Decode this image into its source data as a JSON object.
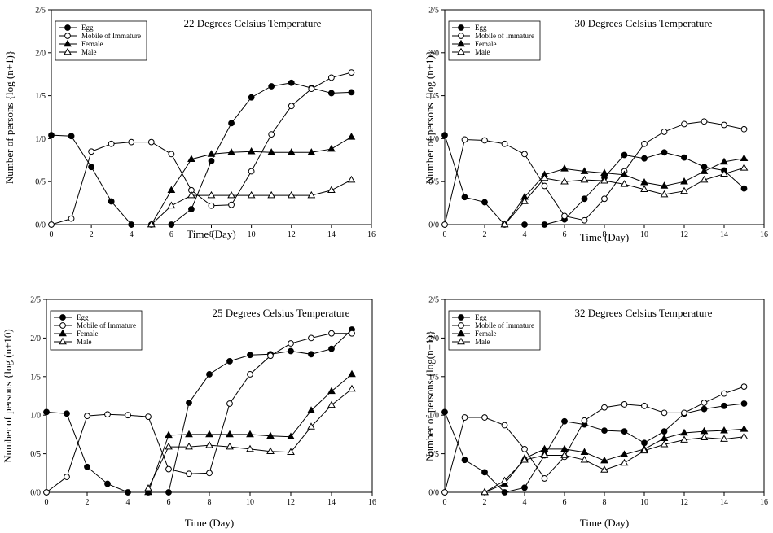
{
  "chart_data": [
    {
      "type": "line",
      "title": "22 Degrees Celsius Temperature",
      "xlabel": "Time (Day)",
      "ylabel": "Number of persons {log (n+1)}",
      "xlim": [
        0,
        16
      ],
      "ylim": [
        0,
        2.5
      ],
      "xticks": [
        "0",
        "2",
        "4",
        "6",
        "8",
        "10",
        "12",
        "14",
        "16"
      ],
      "yticks": [
        "0/0",
        "0/5",
        "1/0",
        "1/5",
        "2/0",
        "2/5"
      ],
      "grid": false,
      "legend_position": "top-left",
      "series": [
        {
          "name": "Egg",
          "marker": "filled-circle",
          "x": [
            0,
            1,
            2,
            3,
            4,
            5,
            6,
            7,
            8,
            9,
            10,
            11,
            12,
            13,
            14,
            15
          ],
          "y": [
            1.04,
            1.03,
            0.67,
            0.27,
            0.0,
            0.0,
            0.0,
            0.18,
            0.74,
            1.18,
            1.48,
            1.61,
            1.65,
            1.59,
            1.53,
            1.54
          ]
        },
        {
          "name": "Mobile of Immature",
          "marker": "open-circle",
          "x": [
            0,
            1,
            2,
            3,
            4,
            5,
            6,
            7,
            8,
            9,
            10,
            11,
            12,
            13,
            14,
            15
          ],
          "y": [
            0.0,
            0.07,
            0.85,
            0.94,
            0.96,
            0.96,
            0.82,
            0.4,
            0.22,
            0.23,
            0.62,
            1.05,
            1.38,
            1.58,
            1.71,
            1.77
          ]
        },
        {
          "name": "Female",
          "marker": "filled-triangle",
          "x": [
            5,
            6,
            7,
            8,
            9,
            10,
            11,
            12,
            13,
            14,
            15
          ],
          "y": [
            0.0,
            0.4,
            0.76,
            0.82,
            0.84,
            0.85,
            0.84,
            0.84,
            0.84,
            0.88,
            1.02
          ]
        },
        {
          "name": "Male",
          "marker": "open-triangle",
          "x": [
            5,
            6,
            7,
            8,
            9,
            10,
            11,
            12,
            13,
            14,
            15
          ],
          "y": [
            0.0,
            0.22,
            0.34,
            0.34,
            0.34,
            0.34,
            0.34,
            0.34,
            0.34,
            0.4,
            0.52
          ]
        }
      ]
    },
    {
      "type": "line",
      "title": "30 Degrees Celsius Temperature",
      "xlabel": "Time (Day)",
      "ylabel": "Number of persons {log (n+1)}",
      "xlim": [
        0,
        16
      ],
      "ylim": [
        0,
        2.5
      ],
      "xticks": [
        "0",
        "2",
        "4",
        "6",
        "8",
        "10",
        "12",
        "14",
        "16"
      ],
      "yticks": [
        "0/0",
        "0/5",
        "1/0",
        "1/5",
        "2/0",
        "2/5"
      ],
      "grid": false,
      "legend_position": "top-left",
      "series": [
        {
          "name": "Egg",
          "marker": "filled-circle",
          "x": [
            0,
            1,
            2,
            3,
            4,
            5,
            6,
            7,
            8,
            9,
            10,
            11,
            12,
            13,
            14,
            15
          ],
          "y": [
            1.04,
            0.32,
            0.26,
            0.0,
            0.0,
            0.0,
            0.06,
            0.3,
            0.55,
            0.81,
            0.77,
            0.84,
            0.78,
            0.67,
            0.63,
            0.42
          ]
        },
        {
          "name": "Mobile of Immature",
          "marker": "open-circle",
          "x": [
            0,
            1,
            2,
            3,
            4,
            5,
            6,
            7,
            8,
            9,
            10,
            11,
            12,
            13,
            14,
            15
          ],
          "y": [
            0.0,
            0.99,
            0.98,
            0.94,
            0.82,
            0.45,
            0.1,
            0.05,
            0.3,
            0.62,
            0.94,
            1.08,
            1.17,
            1.2,
            1.16,
            1.11
          ]
        },
        {
          "name": "Female",
          "marker": "filled-triangle",
          "x": [
            3,
            4,
            5,
            6,
            7,
            8,
            9,
            10,
            11,
            12,
            13,
            14,
            15
          ],
          "y": [
            0.0,
            0.32,
            0.58,
            0.65,
            0.62,
            0.6,
            0.58,
            0.49,
            0.45,
            0.5,
            0.62,
            0.73,
            0.77
          ]
        },
        {
          "name": "Male",
          "marker": "open-triangle",
          "x": [
            3,
            4,
            5,
            6,
            7,
            8,
            9,
            10,
            11,
            12,
            13,
            14,
            15
          ],
          "y": [
            0.0,
            0.27,
            0.54,
            0.5,
            0.52,
            0.51,
            0.47,
            0.41,
            0.35,
            0.39,
            0.52,
            0.59,
            0.66
          ]
        }
      ]
    },
    {
      "type": "line",
      "title": "25 Degrees Celsius Temperature",
      "xlabel": "Time (Day)",
      "ylabel": "Number of persons {log (n+10)",
      "xlim": [
        0,
        16
      ],
      "ylim": [
        0,
        2.5
      ],
      "xticks": [
        "0",
        "2",
        "4",
        "6",
        "8",
        "10",
        "12",
        "14",
        "16"
      ],
      "yticks": [
        "0/0",
        "0/5",
        "1/0",
        "1/5",
        "2/0",
        "2/5"
      ],
      "grid": false,
      "legend_position": "top-left",
      "series": [
        {
          "name": "Egg",
          "marker": "filled-circle",
          "x": [
            0,
            1,
            2,
            3,
            4,
            5,
            6,
            7,
            8,
            9,
            10,
            11,
            12,
            13,
            14,
            15
          ],
          "y": [
            1.04,
            1.02,
            0.33,
            0.11,
            0.0,
            0.0,
            0.0,
            1.16,
            1.53,
            1.7,
            1.78,
            1.79,
            1.83,
            1.79,
            1.86,
            2.11
          ]
        },
        {
          "name": "Mobile of Immature",
          "marker": "open-circle",
          "x": [
            0,
            1,
            2,
            3,
            4,
            5,
            6,
            7,
            8,
            9,
            10,
            11,
            12,
            13,
            14,
            15
          ],
          "y": [
            0.0,
            0.2,
            0.99,
            1.01,
            1.0,
            0.98,
            0.3,
            0.24,
            0.25,
            1.15,
            1.53,
            1.77,
            1.93,
            2.0,
            2.06,
            2.06
          ]
        },
        {
          "name": "Female",
          "marker": "filled-triangle",
          "x": [
            5,
            6,
            7,
            8,
            9,
            10,
            11,
            12,
            13,
            14,
            15
          ],
          "y": [
            0.0,
            0.74,
            0.75,
            0.75,
            0.75,
            0.75,
            0.73,
            0.72,
            1.06,
            1.31,
            1.53
          ]
        },
        {
          "name": "Male",
          "marker": "open-triangle",
          "x": [
            5,
            6,
            7,
            8,
            9,
            10,
            11,
            12,
            13,
            14,
            15
          ],
          "y": [
            0.05,
            0.59,
            0.59,
            0.61,
            0.59,
            0.56,
            0.53,
            0.52,
            0.85,
            1.13,
            1.34
          ]
        }
      ]
    },
    {
      "type": "line",
      "title": "32 Degrees Celsius Temperature",
      "xlabel": "Time (Day)",
      "ylabel": "Number of persons {log(n+1)}",
      "xlim": [
        0,
        16
      ],
      "ylim": [
        0,
        2.5
      ],
      "xticks": [
        "0",
        "2",
        "4",
        "6",
        "8",
        "10",
        "12",
        "14",
        "16"
      ],
      "yticks": [
        "0/0",
        "0/5",
        "1/0",
        "1/5",
        "2/0",
        "2/5"
      ],
      "grid": false,
      "legend_position": "top-left",
      "series": [
        {
          "name": "Egg",
          "marker": "filled-circle",
          "x": [
            0,
            1,
            2,
            3,
            4,
            5,
            6,
            7,
            8,
            9,
            10,
            11,
            12,
            13,
            14,
            15
          ],
          "y": [
            1.04,
            0.42,
            0.26,
            0.0,
            0.06,
            0.48,
            0.92,
            0.88,
            0.8,
            0.79,
            0.64,
            0.79,
            1.02,
            1.08,
            1.12,
            1.15
          ]
        },
        {
          "name": "Mobile of Immature",
          "marker": "open-circle",
          "x": [
            0,
            1,
            2,
            3,
            4,
            5,
            6,
            7,
            8,
            9,
            10,
            11,
            12,
            13,
            14,
            15
          ],
          "y": [
            0.0,
            0.97,
            0.97,
            0.87,
            0.56,
            0.18,
            0.46,
            0.93,
            1.1,
            1.14,
            1.12,
            1.03,
            1.03,
            1.16,
            1.28,
            1.37
          ]
        },
        {
          "name": "Female",
          "marker": "filled-triangle",
          "x": [
            2,
            3,
            4,
            5,
            6,
            7,
            8,
            9,
            10,
            11,
            12,
            13,
            14,
            15
          ],
          "y": [
            0.0,
            0.11,
            0.44,
            0.56,
            0.56,
            0.52,
            0.41,
            0.49,
            0.56,
            0.7,
            0.77,
            0.79,
            0.8,
            0.82
          ]
        },
        {
          "name": "Male",
          "marker": "open-triangle",
          "x": [
            2,
            3,
            4,
            5,
            6,
            7,
            8,
            9,
            10,
            11,
            12,
            13,
            14,
            15
          ],
          "y": [
            0.0,
            0.15,
            0.42,
            0.48,
            0.48,
            0.42,
            0.29,
            0.38,
            0.54,
            0.62,
            0.68,
            0.71,
            0.69,
            0.72
          ]
        }
      ]
    }
  ]
}
